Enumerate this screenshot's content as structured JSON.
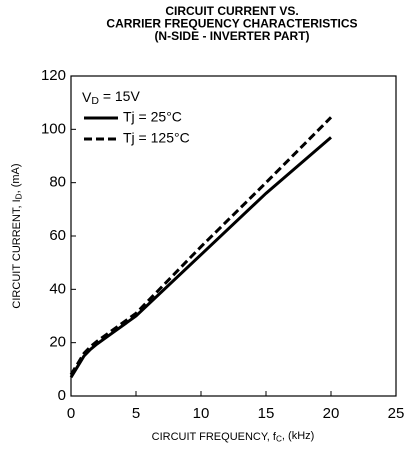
{
  "chart_data": {
    "type": "line",
    "title": [
      "CIRCUIT CURRENT VS.",
      "CARRIER FREQUENCY CHARACTERISTICS",
      "(N-SIDE - INVERTER PART)"
    ],
    "x_label": {
      "text": "CIRCUIT FREQUENCY, f",
      "sub": "C",
      "rest": ", (kHz)"
    },
    "y_label": {
      "text": "CIRCUIT CURRENT, I",
      "sub": "D",
      "rest": ", (mA)"
    },
    "annotation": {
      "text": "V",
      "sub": "D",
      "rest": " = 15V"
    },
    "x": [
      0,
      0.5,
      1,
      1.5,
      2,
      3,
      5,
      10,
      15,
      20
    ],
    "series": [
      {
        "name": "Tj = 25°C",
        "color": "#000000",
        "dash": false,
        "values": [
          7,
          11,
          15,
          17.5,
          19.5,
          23,
          30,
          53,
          76,
          97
        ]
      },
      {
        "name": "Tj = 125°C",
        "color": "#000000",
        "dash": true,
        "values": [
          8,
          12,
          16,
          18.5,
          20.5,
          24,
          31,
          56,
          80,
          104.5
        ]
      }
    ],
    "xlim": [
      0,
      25
    ],
    "xticks": [
      0,
      5,
      10,
      15,
      20,
      25
    ],
    "ylim": [
      0,
      120
    ],
    "yticks": [
      0,
      20,
      40,
      60,
      80,
      100,
      120
    ],
    "grid": false,
    "legend": "upper left"
  }
}
